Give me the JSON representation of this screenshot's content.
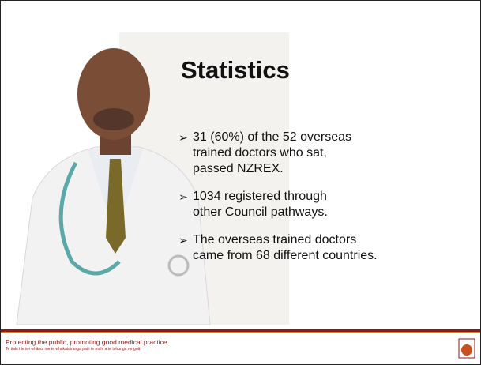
{
  "slide": {
    "title": "Statistics",
    "bullets": [
      "31 (60%) of the 52 overseas trained doctors who sat, passed NZREX.",
      "1034 registered through other Council pathways.",
      "The overseas trained doctors came from 68 different countries."
    ]
  },
  "footer": {
    "tagline": "Protecting the public, promoting good medical practice",
    "subtitle": "Te tiaki i te iwi whānui me te whakatairanga pai i te mahi a te tohunga rongoā"
  }
}
